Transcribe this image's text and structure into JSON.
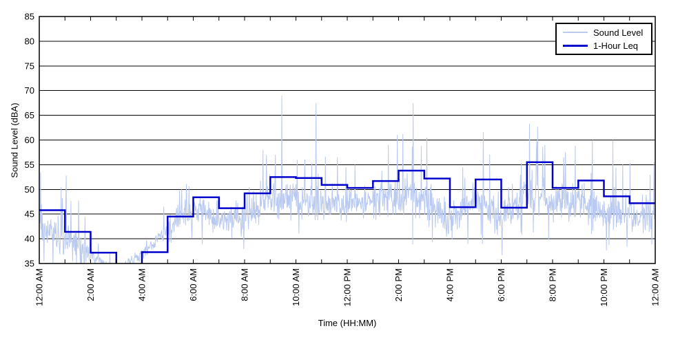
{
  "chart_data": {
    "type": "line",
    "title": "",
    "xlabel": "Time (HH:MM)",
    "ylabel": "Sound Level (dBA)",
    "ylim": [
      35,
      85
    ],
    "xlim_hours": [
      0,
      24
    ],
    "y_ticks": [
      35,
      40,
      45,
      50,
      55,
      60,
      65,
      70,
      75,
      80,
      85
    ],
    "x_tick_hours": [
      0,
      2,
      4,
      6,
      8,
      10,
      12,
      14,
      16,
      18,
      20,
      22,
      24
    ],
    "x_tick_labels": [
      "12:00 AM",
      "2:00 AM",
      "4:00 AM",
      "6:00 AM",
      "8:00 AM",
      "10:00 AM",
      "12:00 PM",
      "2:00 PM",
      "4:00 PM",
      "6:00 PM",
      "8:00 PM",
      "10:00 PM",
      "12:00 AM"
    ],
    "grid": "horizontal-only",
    "axis_color": "#000000",
    "legend": {
      "position": "top-right",
      "border_color": "#000000",
      "background": "#ffffff"
    },
    "series": [
      {
        "name": "Sound Level",
        "color": "#b9c9f0",
        "style": "thin-noisy-line",
        "sample_interval_minutes": 1,
        "hourly_envelope": [
          {
            "hour": 0,
            "mean": 43.0,
            "amp": 6.5
          },
          {
            "hour": 1,
            "mean": 40.0,
            "amp": 5.0
          },
          {
            "hour": 2,
            "mean": 36.8,
            "amp": 2.2
          },
          {
            "hour": 3,
            "mean": 33.3,
            "amp": 2.2
          },
          {
            "hour": 4,
            "mean": 36.8,
            "amp": 2.8
          },
          {
            "hour": 5,
            "mean": 42.0,
            "amp": 5.0
          },
          {
            "hour": 6,
            "mean": 46.5,
            "amp": 4.5
          },
          {
            "hour": 7,
            "mean": 44.0,
            "amp": 5.0
          },
          {
            "hour": 8,
            "mean": 45.0,
            "amp": 5.5
          },
          {
            "hour": 9,
            "mean": 47.5,
            "amp": 6.0
          },
          {
            "hour": 10,
            "mean": 47.5,
            "amp": 6.0
          },
          {
            "hour": 11,
            "mean": 47.0,
            "amp": 5.5
          },
          {
            "hour": 12,
            "mean": 47.0,
            "amp": 5.0
          },
          {
            "hour": 13,
            "mean": 48.0,
            "amp": 6.0
          },
          {
            "hour": 14,
            "mean": 48.5,
            "amp": 6.0
          },
          {
            "hour": 15,
            "mean": 48.0,
            "amp": 6.0
          },
          {
            "hour": 16,
            "mean": 44.5,
            "amp": 5.5
          },
          {
            "hour": 17,
            "mean": 48.0,
            "amp": 6.0
          },
          {
            "hour": 18,
            "mean": 44.5,
            "amp": 5.5
          },
          {
            "hour": 19,
            "mean": 50.0,
            "amp": 6.5
          },
          {
            "hour": 20,
            "mean": 47.5,
            "amp": 6.0
          },
          {
            "hour": 21,
            "mean": 48.0,
            "amp": 6.0
          },
          {
            "hour": 22,
            "mean": 45.0,
            "amp": 6.0
          },
          {
            "hour": 23,
            "mean": 44.5,
            "amp": 5.5
          }
        ],
        "spikes": [
          {
            "t_hours": 0.85,
            "dba": 50.5
          },
          {
            "t_hours": 1.05,
            "dba": 52.8
          },
          {
            "t_hours": 4.85,
            "dba": 46.5
          },
          {
            "t_hours": 5.55,
            "dba": 50.0
          },
          {
            "t_hours": 8.72,
            "dba": 58.0
          },
          {
            "t_hours": 9.2,
            "dba": 57.0
          },
          {
            "t_hours": 9.45,
            "dba": 69.0
          },
          {
            "t_hours": 10.05,
            "dba": 56.0
          },
          {
            "t_hours": 10.78,
            "dba": 67.5
          },
          {
            "t_hours": 11.62,
            "dba": 56.5
          },
          {
            "t_hours": 12.3,
            "dba": 55.0
          },
          {
            "t_hours": 13.6,
            "dba": 59.0
          },
          {
            "t_hours": 13.95,
            "dba": 61.0
          },
          {
            "t_hours": 14.17,
            "dba": 61.2
          },
          {
            "t_hours": 14.56,
            "dba": 67.5
          },
          {
            "t_hours": 15.1,
            "dba": 60.5
          },
          {
            "t_hours": 16.5,
            "dba": 54.5
          },
          {
            "t_hours": 17.3,
            "dba": 61.6
          },
          {
            "t_hours": 17.55,
            "dba": 57.0
          },
          {
            "t_hours": 19.1,
            "dba": 63.3
          },
          {
            "t_hours": 19.42,
            "dba": 62.7
          },
          {
            "t_hours": 19.7,
            "dba": 59.0
          },
          {
            "t_hours": 20.5,
            "dba": 57.5
          },
          {
            "t_hours": 21.55,
            "dba": 60.0
          },
          {
            "t_hours": 22.35,
            "dba": 60.0
          },
          {
            "t_hours": 23.02,
            "dba": 55.4
          },
          {
            "t_hours": 23.95,
            "dba": 55.5
          }
        ]
      },
      {
        "name": "1-Hour Leq",
        "color": "#0000cc",
        "style": "step",
        "hourly_leq_dba": [
          45.8,
          41.4,
          37.2,
          34.0,
          37.3,
          44.5,
          48.4,
          46.2,
          49.2,
          52.5,
          52.3,
          50.9,
          50.3,
          51.7,
          53.8,
          52.2,
          46.4,
          52.0,
          46.3,
          55.5,
          50.3,
          51.8,
          48.6,
          47.2
        ]
      }
    ]
  }
}
